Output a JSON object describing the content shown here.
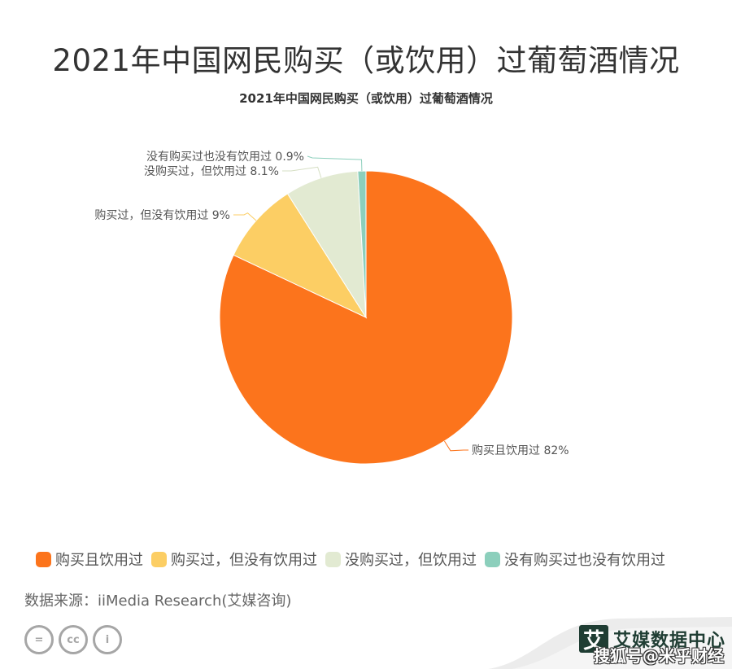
{
  "header": {
    "title": "2021年中国网民购买（或饮用）过葡萄酒情况",
    "subtitle": "2021年中国网民购买（或饮用）过葡萄酒情况"
  },
  "chart_data": {
    "type": "pie",
    "title": "2021年中国网民购买（或饮用）过葡萄酒情况",
    "categories": [
      "购买且饮用过",
      "购买过，但没有饮用过",
      "没购买过，但饮用过",
      "没有购买过也没有饮用过"
    ],
    "values": [
      82,
      9,
      8.1,
      0.9
    ],
    "unit": "%",
    "colors": [
      "#fc741c",
      "#fcce64",
      "#e2ead2",
      "#8ccfbc"
    ],
    "labels": [
      "购买且饮用过 82%",
      "购买过，但没有饮用过 9%",
      "没购买过，但饮用过 8.1%",
      "没有购买过也没有饮用过 0.9%"
    ],
    "legend_position": "bottom",
    "start_angle": "12 o'clock, clockwise"
  },
  "legend": {
    "items": [
      {
        "label": "购买且饮用过",
        "color": "#fc741c"
      },
      {
        "label": "购买过，但没有饮用过",
        "color": "#fcce64"
      },
      {
        "label": "没购买过，但饮用过",
        "color": "#e2ead2"
      },
      {
        "label": "没有购买过也没有饮用过",
        "color": "#8ccfbc"
      }
    ]
  },
  "footer": {
    "source": "数据来源：iiMedia Research(艾媒咨询)",
    "cc_icons": [
      "equals-icon",
      "cc-icon",
      "person-icon"
    ],
    "cc_glyphs": [
      "=",
      "cc",
      "i"
    ],
    "brand_logo": "艾",
    "brand_name": "艾媒数据中心",
    "watermark": "搜狐号@米乎财经"
  }
}
